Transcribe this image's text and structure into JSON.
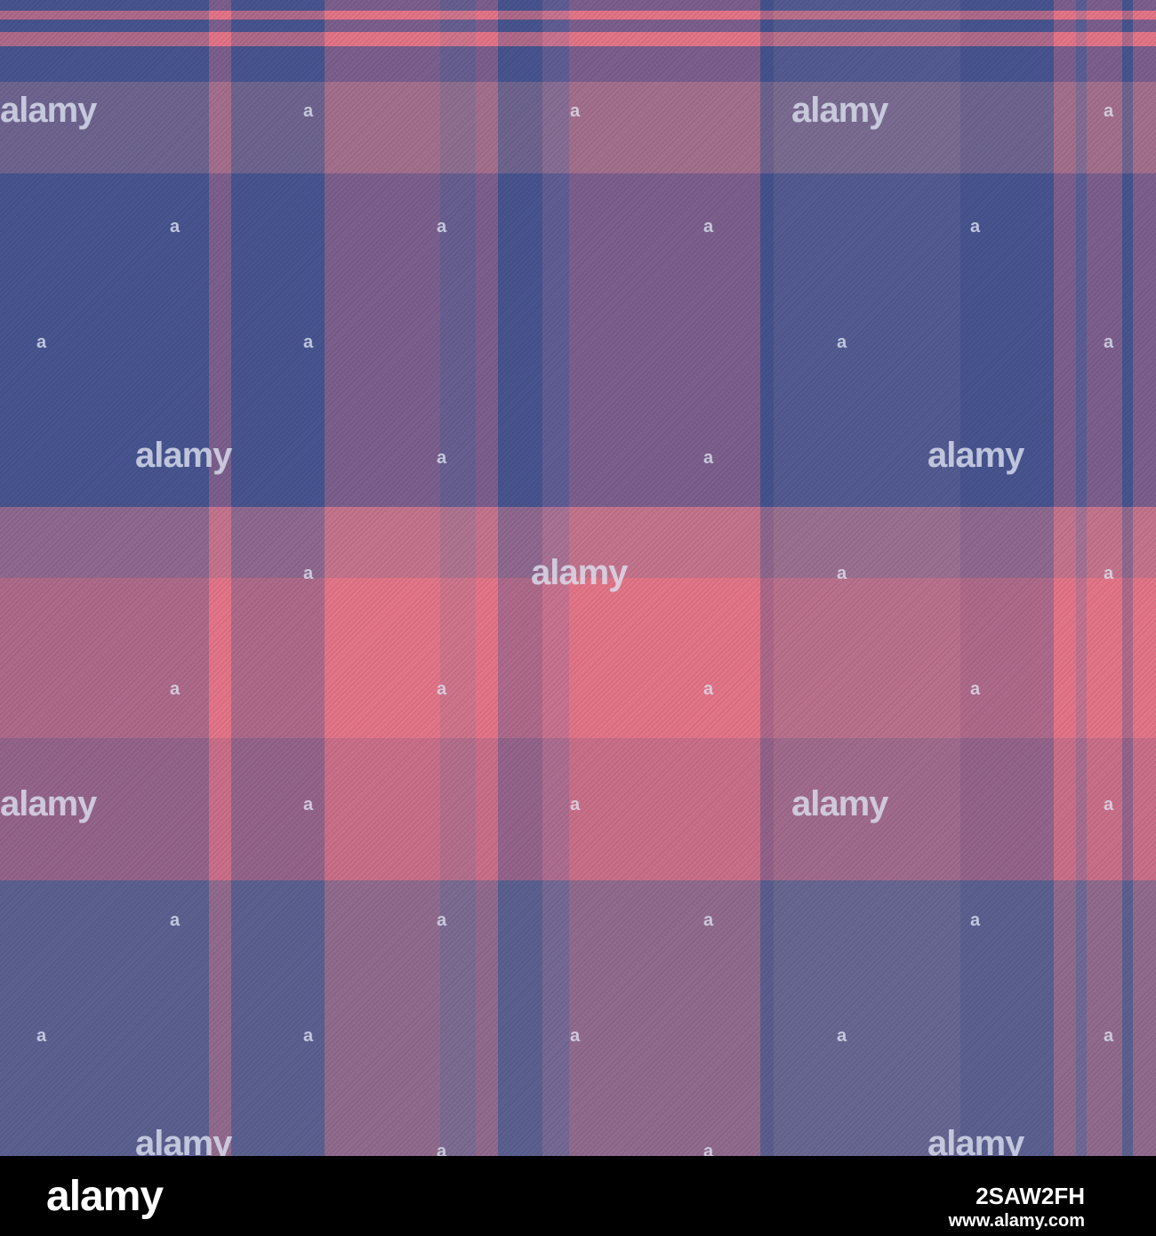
{
  "pattern": {
    "description_colors": {
      "blue": "#44528f",
      "pink": "#ff7a86",
      "muted": "#8a6f90",
      "dark": "#3f4a86"
    }
  },
  "watermark": {
    "text": "alamy",
    "small_text": "a"
  },
  "footer": {
    "logo": "alamy",
    "image_id": "2SAW2FH",
    "url": "www.alamy.com"
  }
}
